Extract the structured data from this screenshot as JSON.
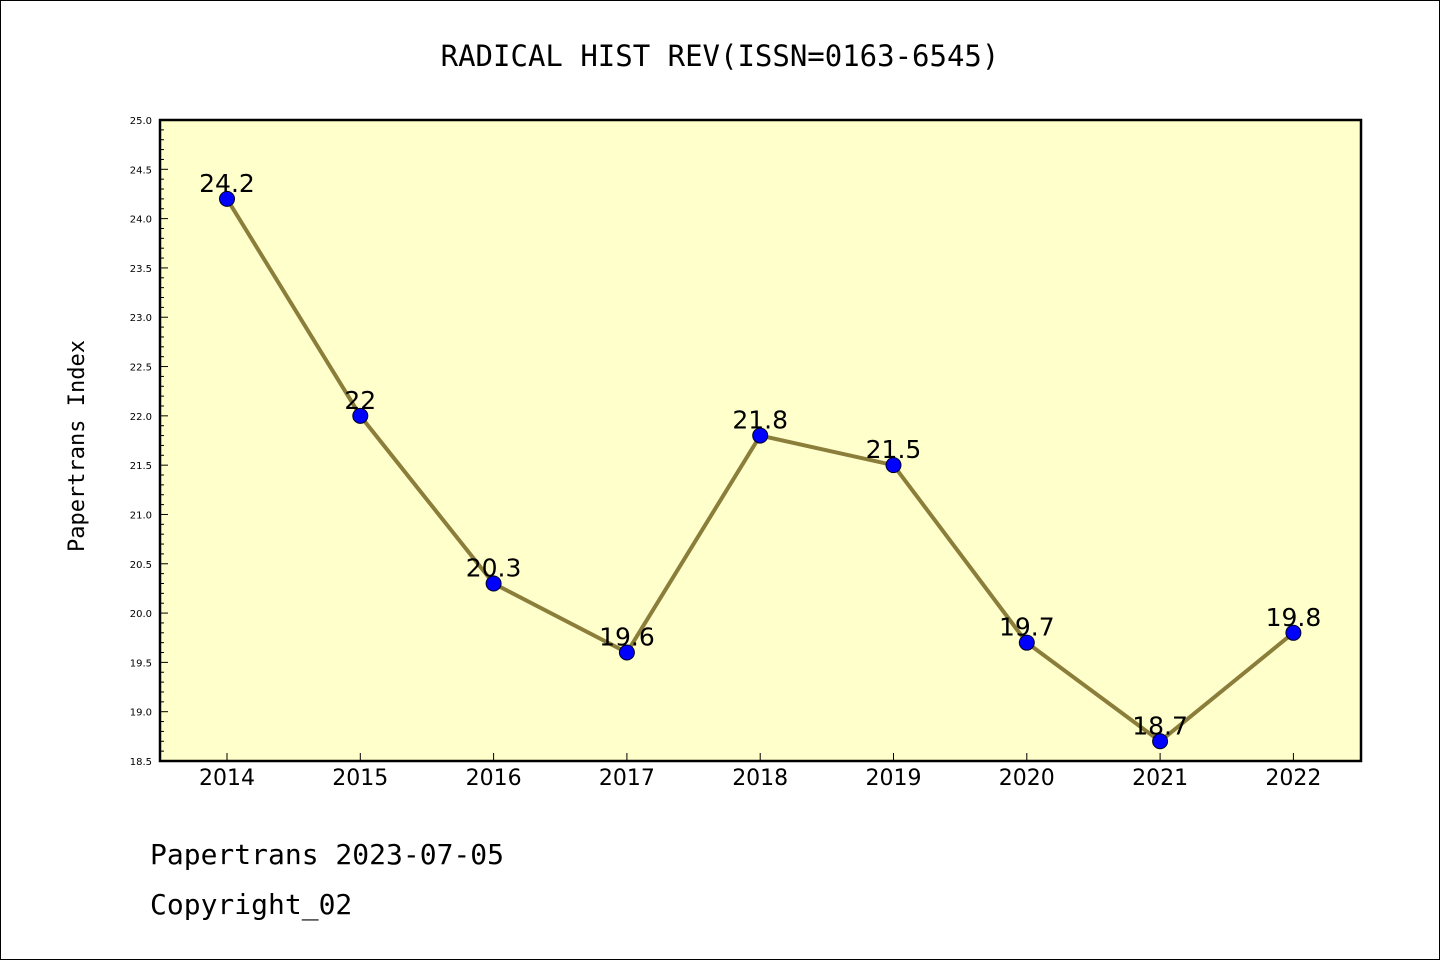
{
  "chart_data": {
    "type": "line",
    "title": "RADICAL HIST REV(ISSN=0163-6545)",
    "xlabel": "",
    "ylabel": "Papertrans Index",
    "categories": [
      "2014",
      "2015",
      "2016",
      "2017",
      "2018",
      "2019",
      "2020",
      "2021",
      "2022"
    ],
    "series": [
      {
        "values": [
          24.2,
          22,
          20.3,
          19.6,
          21.8,
          21.5,
          19.7,
          18.7,
          19.8
        ],
        "labels": [
          "24.2",
          "22",
          "20.3",
          "19.6",
          "21.8",
          "21.5",
          "19.7",
          "18.7",
          "19.8"
        ]
      }
    ],
    "ylim": [
      18.5,
      25.0
    ],
    "yticks": [
      "18.5",
      "19.0",
      "19.5",
      "20.0",
      "20.5",
      "21.0",
      "21.5",
      "22.0",
      "22.5",
      "23.0",
      "23.5",
      "24.0",
      "24.5",
      "25.0"
    ],
    "grid": false,
    "colors": {
      "plot_background": "#ffffcc",
      "line": "#8b7d3a",
      "marker": "#0000ff"
    }
  },
  "footer": {
    "line1": "Papertrans 2023-07-05",
    "line2": "Copyright_02"
  }
}
